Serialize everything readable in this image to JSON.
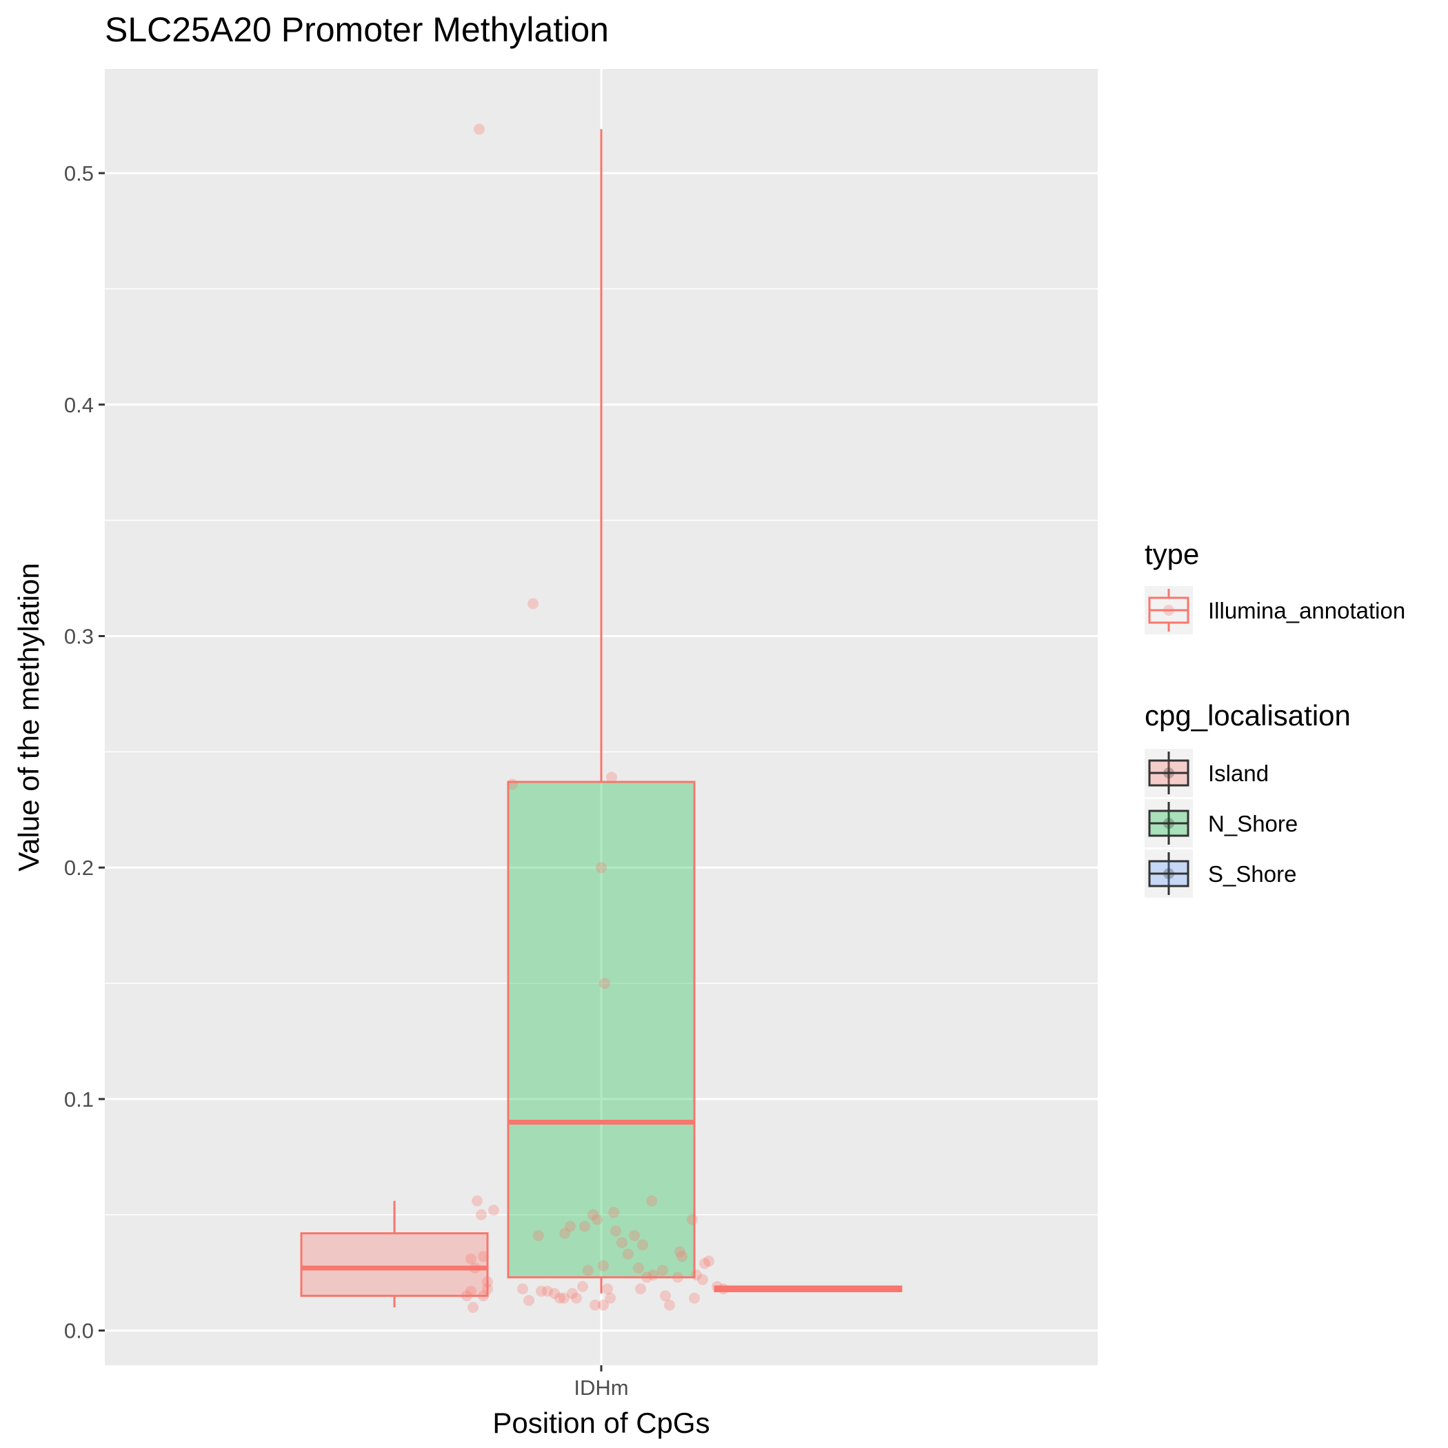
{
  "chart_data": {
    "type": "box",
    "title": "SLC25A20 Promoter Methylation",
    "xlabel": "Position of CpGs",
    "ylabel": "Value of the methylation",
    "categories": [
      "IDHm"
    ],
    "ylim": [
      -0.015,
      0.545
    ],
    "yticks": [
      0.0,
      0.1,
      0.2,
      0.3,
      0.4,
      0.5
    ],
    "ytick_labels": [
      "0.0",
      "0.1",
      "0.2",
      "0.3",
      "0.4",
      "0.5"
    ],
    "grid": true,
    "legend_position": "right",
    "colors": {
      "panel_bg": "#EBEBEB",
      "grid": "#FFFFFF",
      "box_outline": "#F8766D",
      "points": "#F8766D",
      "Island": "#F8766D",
      "N_Shore": "#00BA38",
      "S_Shore": "#619CFF"
    },
    "legends": [
      {
        "title": "type",
        "entries": [
          {
            "label": "Illumina_annotation"
          }
        ]
      },
      {
        "title": "cpg_localisation",
        "entries": [
          {
            "label": "Island",
            "fill": "#F8766D"
          },
          {
            "label": "N_Shore",
            "fill": "#00BA38"
          },
          {
            "label": "S_Shore",
            "fill": "#619CFF"
          }
        ]
      }
    ],
    "boxes": [
      {
        "group": "Island",
        "category": "IDHm",
        "dodge": -1,
        "min": 0.01,
        "q1": 0.015,
        "median": 0.027,
        "q3": 0.042,
        "max": 0.056
      },
      {
        "group": "N_Shore",
        "category": "IDHm",
        "dodge": 0,
        "min": 0.016,
        "q1": 0.023,
        "median": 0.09,
        "q3": 0.237,
        "max": 0.519
      },
      {
        "group": "S_Shore",
        "category": "IDHm",
        "dodge": 1,
        "min": 0.017,
        "q1": 0.017,
        "median": 0.018,
        "q3": 0.019,
        "max": 0.019
      }
    ],
    "points": [
      {
        "x": -0.295,
        "y": 0.519
      },
      {
        "x": -0.165,
        "y": 0.314
      },
      {
        "x": -0.215,
        "y": 0.236
      },
      {
        "x": 0.025,
        "y": 0.239
      },
      {
        "x": 0.0,
        "y": 0.2
      },
      {
        "x": 0.008,
        "y": 0.15
      },
      {
        "x": -0.305,
        "y": 0.027
      },
      {
        "x": -0.19,
        "y": 0.018
      },
      {
        "x": -0.175,
        "y": 0.013
      },
      {
        "x": -0.145,
        "y": 0.017
      },
      {
        "x": -0.152,
        "y": 0.041
      },
      {
        "x": -0.13,
        "y": 0.017
      },
      {
        "x": -0.113,
        "y": 0.016
      },
      {
        "x": -0.1,
        "y": 0.014
      },
      {
        "x": -0.09,
        "y": 0.014
      },
      {
        "x": -0.088,
        "y": 0.042
      },
      {
        "x": -0.075,
        "y": 0.045
      },
      {
        "x": -0.06,
        "y": 0.014
      },
      {
        "x": -0.07,
        "y": 0.016
      },
      {
        "x": -0.045,
        "y": 0.019
      },
      {
        "x": -0.04,
        "y": 0.045
      },
      {
        "x": -0.032,
        "y": 0.026
      },
      {
        "x": -0.02,
        "y": 0.05
      },
      {
        "x": -0.01,
        "y": 0.048
      },
      {
        "x": -0.015,
        "y": 0.011
      },
      {
        "x": 0.005,
        "y": 0.011
      },
      {
        "x": 0.015,
        "y": 0.018
      },
      {
        "x": 0.022,
        "y": 0.014
      },
      {
        "x": 0.03,
        "y": 0.051
      },
      {
        "x": 0.035,
        "y": 0.043
      },
      {
        "x": 0.05,
        "y": 0.038
      },
      {
        "x": 0.065,
        "y": 0.033
      },
      {
        "x": 0.08,
        "y": 0.041
      },
      {
        "x": 0.09,
        "y": 0.027
      },
      {
        "x": 0.095,
        "y": 0.018
      },
      {
        "x": 0.1,
        "y": 0.037
      },
      {
        "x": 0.11,
        "y": 0.023
      },
      {
        "x": 0.122,
        "y": 0.056
      },
      {
        "x": 0.005,
        "y": 0.028
      },
      {
        "x": -0.275,
        "y": 0.018
      },
      {
        "x": -0.26,
        "y": 0.052
      },
      {
        "x": -0.285,
        "y": 0.032
      },
      {
        "x": -0.275,
        "y": 0.021
      },
      {
        "x": -0.315,
        "y": 0.017
      },
      {
        "x": -0.325,
        "y": 0.015
      },
      {
        "x": -0.31,
        "y": 0.01
      },
      {
        "x": -0.315,
        "y": 0.031
      },
      {
        "x": -0.3,
        "y": 0.056
      },
      {
        "x": -0.29,
        "y": 0.05
      },
      {
        "x": -0.285,
        "y": 0.015
      },
      {
        "x": 0.155,
        "y": 0.015
      },
      {
        "x": 0.165,
        "y": 0.011
      },
      {
        "x": 0.185,
        "y": 0.023
      },
      {
        "x": 0.19,
        "y": 0.034
      },
      {
        "x": 0.195,
        "y": 0.032
      },
      {
        "x": 0.22,
        "y": 0.048
      },
      {
        "x": 0.225,
        "y": 0.014
      },
      {
        "x": 0.23,
        "y": 0.024
      },
      {
        "x": 0.245,
        "y": 0.022
      },
      {
        "x": 0.25,
        "y": 0.029
      },
      {
        "x": 0.26,
        "y": 0.03
      },
      {
        "x": 0.28,
        "y": 0.019
      },
      {
        "x": 0.295,
        "y": 0.018
      },
      {
        "x": 0.148,
        "y": 0.026
      },
      {
        "x": 0.125,
        "y": 0.024
      }
    ]
  }
}
